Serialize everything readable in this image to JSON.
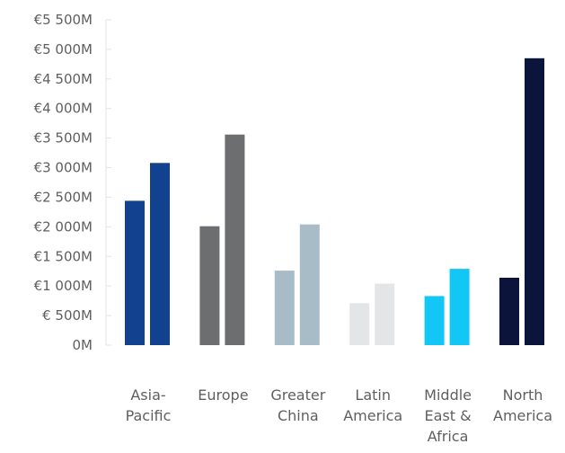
{
  "chart_data": {
    "type": "bar",
    "title": "",
    "xlabel": "",
    "ylabel": "",
    "ylim": [
      0,
      5500
    ],
    "y_ticks": [
      {
        "value": 0,
        "label": "0M"
      },
      {
        "value": 500,
        "label": "€ 500M"
      },
      {
        "value": 1000,
        "label": "€1 000M"
      },
      {
        "value": 1500,
        "label": "€1 500M"
      },
      {
        "value": 2000,
        "label": "€2 000M"
      },
      {
        "value": 2500,
        "label": "€2 500M"
      },
      {
        "value": 3000,
        "label": "€3 000M"
      },
      {
        "value": 3500,
        "label": "€3 500M"
      },
      {
        "value": 4000,
        "label": "€4 000M"
      },
      {
        "value": 4500,
        "label": "€4 500M"
      },
      {
        "value": 5000,
        "label": "€5 000M"
      },
      {
        "value": 5500,
        "label": "€5 500M"
      }
    ],
    "categories": [
      {
        "key": "asia-pacific",
        "lines": [
          "Asia-",
          "Pacific"
        ],
        "values": [
          2440,
          3080
        ],
        "color": "#12418f"
      },
      {
        "key": "europe",
        "lines": [
          "Europe"
        ],
        "values": [
          2010,
          3560
        ],
        "color": "#6d6e70"
      },
      {
        "key": "greater-china",
        "lines": [
          "Greater",
          "China"
        ],
        "values": [
          1260,
          2040
        ],
        "color": "#a8bcc7"
      },
      {
        "key": "latin-america",
        "lines": [
          "Latin",
          "America"
        ],
        "values": [
          710,
          1040
        ],
        "color": "#e4e5e7"
      },
      {
        "key": "middle-east-africa",
        "lines": [
          "Middle",
          "East &",
          "Africa"
        ],
        "values": [
          830,
          1290
        ],
        "color": "#12c7f6"
      },
      {
        "key": "north-america",
        "lines": [
          "North",
          "America"
        ],
        "values": [
          1140,
          4850
        ],
        "color": "#0b153b"
      }
    ],
    "grid": false,
    "legend": "none"
  }
}
